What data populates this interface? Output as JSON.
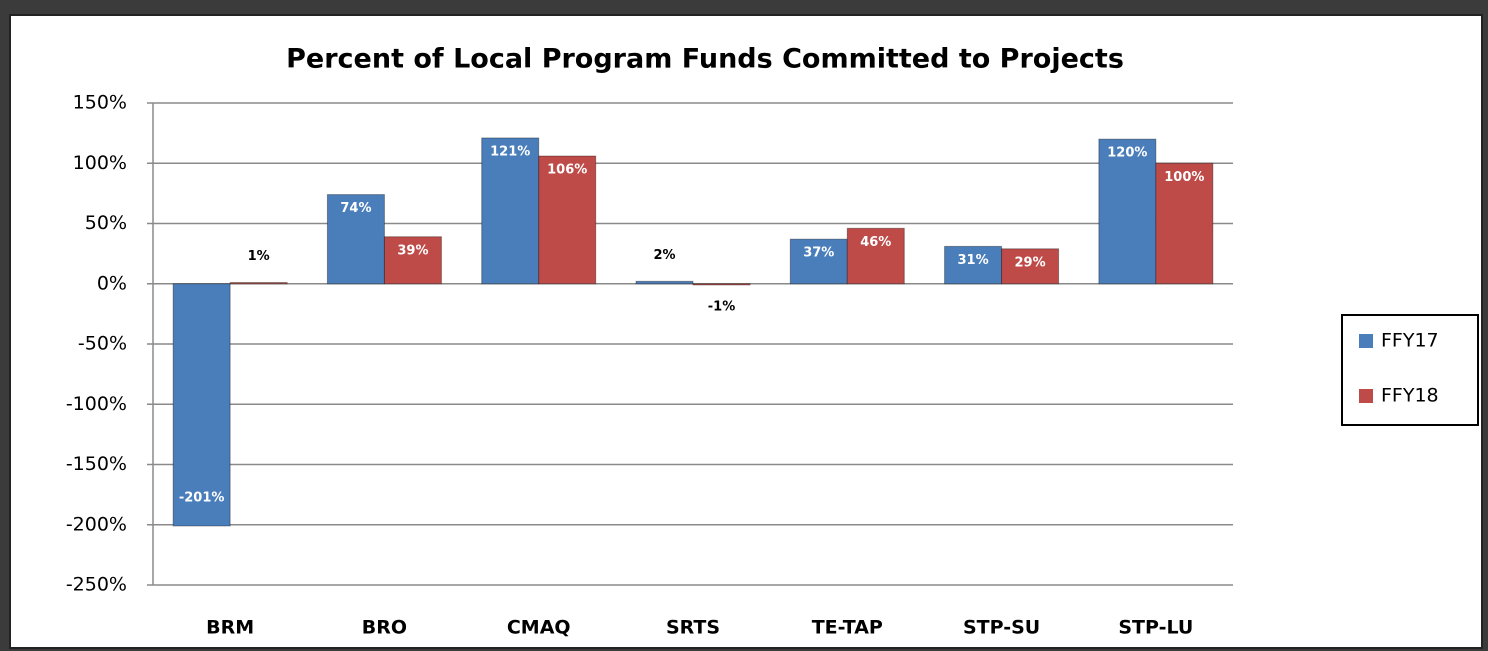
{
  "chart_data": {
    "type": "bar",
    "title": "Percent of Local Program Funds Committed to Projects",
    "categories": [
      "BRM",
      "BRO",
      "CMAQ",
      "SRTS",
      "TE-TAP",
      "STP-SU",
      "STP-LU"
    ],
    "series": [
      {
        "name": "FFY17",
        "color": "#4a7ebb",
        "values": [
          -201,
          74,
          121,
          2,
          37,
          31,
          120
        ],
        "value_labels": [
          "-201%",
          "74%",
          "121%",
          "2%",
          "37%",
          "31%",
          "120%"
        ]
      },
      {
        "name": "FFY18",
        "color": "#be4b48",
        "values": [
          1,
          39,
          106,
          -1,
          46,
          29,
          100
        ],
        "value_labels": [
          "1%",
          "39%",
          "106%",
          "-1%",
          "46%",
          "29%",
          "100%"
        ]
      }
    ],
    "ylim": [
      -250,
      150
    ],
    "yticks": [
      {
        "value": -250,
        "label": "-250%"
      },
      {
        "value": -200,
        "label": "-200%"
      },
      {
        "value": -150,
        "label": "-150%"
      },
      {
        "value": -100,
        "label": "-100%"
      },
      {
        "value": -50,
        "label": "-50%"
      },
      {
        "value": 0,
        "label": "0%"
      },
      {
        "value": 50,
        "label": "50%"
      },
      {
        "value": 100,
        "label": "100%"
      },
      {
        "value": 150,
        "label": "150%"
      }
    ],
    "grid": true,
    "legend": "right"
  }
}
